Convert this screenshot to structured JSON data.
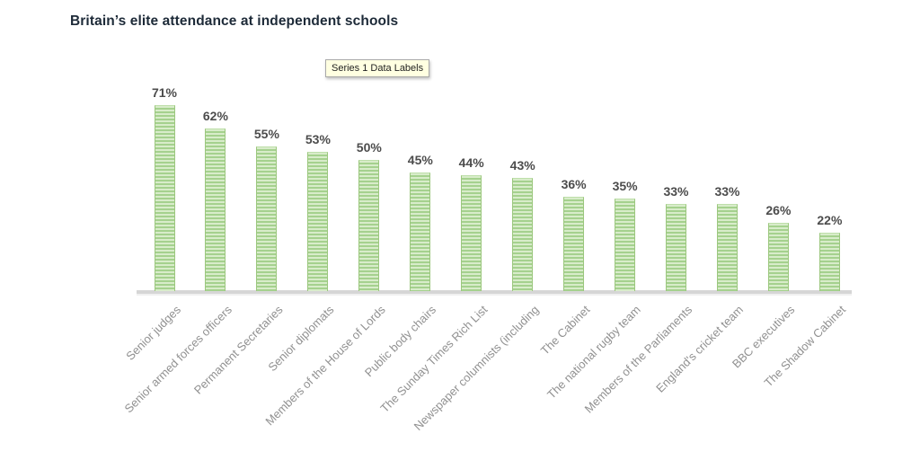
{
  "title": "Britain’s elite attendance at independent schools",
  "tooltip": {
    "label": "Series 1 Data Labels"
  },
  "colors": {
    "title_text": "#1d2a38",
    "bar_stripe_light": "#d8ecca",
    "bar_stripe_dark": "#a5d18e",
    "bar_border": "#9cc77e",
    "axis_line": "#d6d6d6",
    "value_label_text": "#4c4c4c",
    "category_label_text": "#919191",
    "tooltip_bg": "#ffffe1"
  },
  "chart_data": {
    "type": "bar",
    "title": "Britain’s elite attendance at independent schools",
    "categories": [
      "Senior judges",
      "Senior armed forces officers",
      "Permanent Secretaries",
      "Senior diplomats",
      "Members of the House of Lords",
      "Public body chairs",
      "The Sunday Times Rich List",
      "Newspaper columnists (including",
      "The Cabinet",
      "The national rugby team",
      "Members of the Parliaments",
      "England's cricket team",
      "BBC executives",
      "The Shadow Cabinet"
    ],
    "values": [
      71,
      62,
      55,
      53,
      50,
      45,
      44,
      43,
      36,
      35,
      33,
      33,
      26,
      22
    ],
    "unit": "%",
    "xlabel": "",
    "ylabel": "",
    "ylim": [
      0,
      80
    ],
    "grid": false,
    "legend": false,
    "data_labels_shown": true,
    "series_name": "Series 1"
  }
}
